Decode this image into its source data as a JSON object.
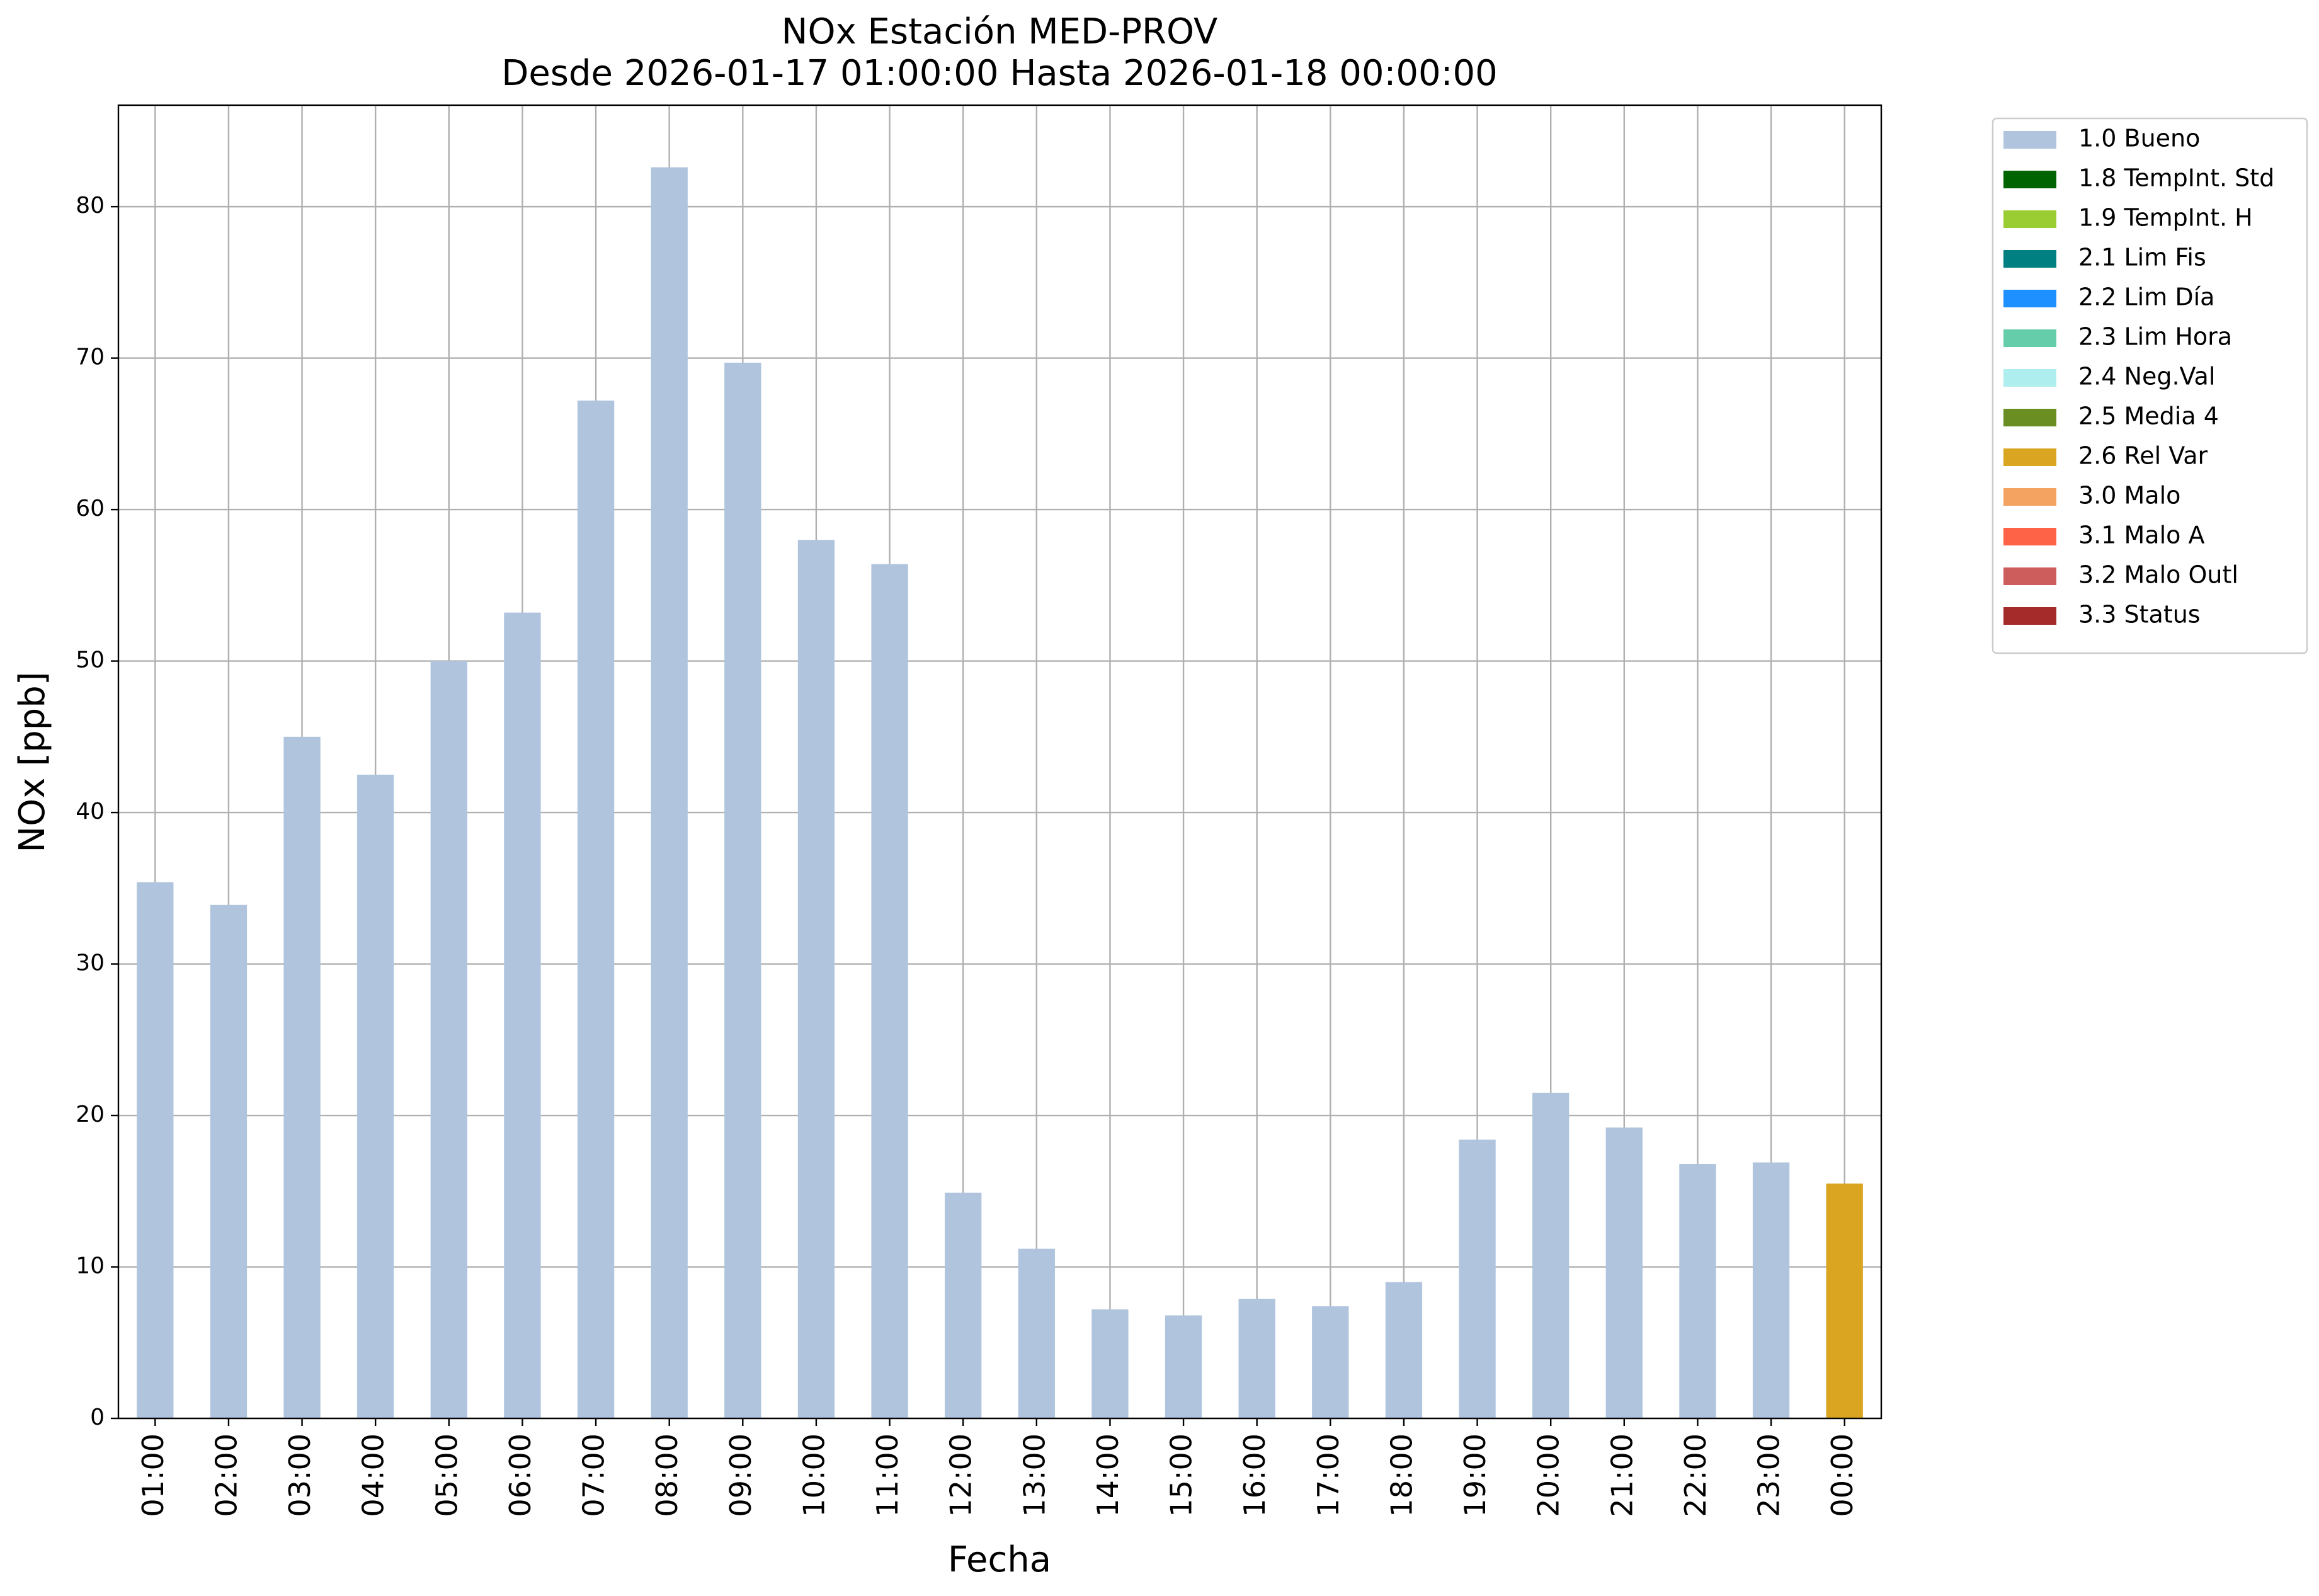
{
  "chart_data": {
    "type": "stacked_bar",
    "title": "NOx Estación MED-PROV",
    "subtitle": "Desde 2026-01-17 01:00:00 Hasta 2026-01-18 00:00:00",
    "x_label": "Fecha",
    "y_label": "NOx [ppb]",
    "categories": [
      "01:00",
      "02:00",
      "03:00",
      "04:00",
      "05:00",
      "06:00",
      "07:00",
      "08:00",
      "09:00",
      "10:00",
      "11:00",
      "12:00",
      "13:00",
      "14:00",
      "15:00",
      "16:00",
      "17:00",
      "18:00",
      "19:00",
      "20:00",
      "21:00",
      "22:00",
      "23:00",
      "00:00"
    ],
    "series": [
      {
        "name": "1.0 Bueno",
        "color": "#b0c4de",
        "values": [
          35.4,
          33.9,
          45.0,
          42.5,
          50.0,
          53.2,
          67.2,
          82.6,
          69.7,
          58.0,
          56.4,
          14.9,
          11.2,
          7.2,
          6.8,
          7.9,
          7.4,
          9.0,
          18.4,
          21.5,
          19.2,
          16.8,
          16.9,
          null
        ]
      },
      {
        "name": "1.8 TempInt. Std",
        "color": "#006400",
        "values": [
          null,
          null,
          null,
          null,
          null,
          null,
          null,
          null,
          null,
          null,
          null,
          null,
          null,
          null,
          null,
          null,
          null,
          null,
          null,
          null,
          null,
          null,
          null,
          null
        ]
      },
      {
        "name": "1.9 TempInt. H",
        "color": "#9acd32",
        "values": [
          null,
          null,
          null,
          null,
          null,
          null,
          null,
          null,
          null,
          null,
          null,
          null,
          null,
          null,
          null,
          null,
          null,
          null,
          null,
          null,
          null,
          null,
          null,
          null
        ]
      },
      {
        "name": "2.1 Lim Fis",
        "color": "#008080",
        "values": [
          null,
          null,
          null,
          null,
          null,
          null,
          null,
          null,
          null,
          null,
          null,
          null,
          null,
          null,
          null,
          null,
          null,
          null,
          null,
          null,
          null,
          null,
          null,
          null
        ]
      },
      {
        "name": "2.2 Lim Día",
        "color": "#1e90ff",
        "values": [
          null,
          null,
          null,
          null,
          null,
          null,
          null,
          null,
          null,
          null,
          null,
          null,
          null,
          null,
          null,
          null,
          null,
          null,
          null,
          null,
          null,
          null,
          null,
          null
        ]
      },
      {
        "name": "2.3 Lim Hora",
        "color": "#66cdaa",
        "values": [
          null,
          null,
          null,
          null,
          null,
          null,
          null,
          null,
          null,
          null,
          null,
          null,
          null,
          null,
          null,
          null,
          null,
          null,
          null,
          null,
          null,
          null,
          null,
          null
        ]
      },
      {
        "name": "2.4 Neg.Val",
        "color": "#afeeee",
        "values": [
          null,
          null,
          null,
          null,
          null,
          null,
          null,
          null,
          null,
          null,
          null,
          null,
          null,
          null,
          null,
          null,
          null,
          null,
          null,
          null,
          null,
          null,
          null,
          null
        ]
      },
      {
        "name": "2.5 Media 4",
        "color": "#6b8e23",
        "values": [
          null,
          null,
          null,
          null,
          null,
          null,
          null,
          null,
          null,
          null,
          null,
          null,
          null,
          null,
          null,
          null,
          null,
          null,
          null,
          null,
          null,
          null,
          null,
          null
        ]
      },
      {
        "name": "2.6 Rel Var",
        "color": "#daa520",
        "values": [
          null,
          null,
          null,
          null,
          null,
          null,
          null,
          null,
          null,
          null,
          null,
          null,
          null,
          null,
          null,
          null,
          null,
          null,
          null,
          null,
          null,
          null,
          null,
          15.5
        ]
      },
      {
        "name": "3.0 Malo",
        "color": "#f4a460",
        "values": [
          null,
          null,
          null,
          null,
          null,
          null,
          null,
          null,
          null,
          null,
          null,
          null,
          null,
          null,
          null,
          null,
          null,
          null,
          null,
          null,
          null,
          null,
          null,
          null
        ]
      },
      {
        "name": "3.1 Malo A",
        "color": "#ff6347",
        "values": [
          null,
          null,
          null,
          null,
          null,
          null,
          null,
          null,
          null,
          null,
          null,
          null,
          null,
          null,
          null,
          null,
          null,
          null,
          null,
          null,
          null,
          null,
          null,
          null
        ]
      },
      {
        "name": "3.2 Malo Outl",
        "color": "#cd5c5c",
        "values": [
          null,
          null,
          null,
          null,
          null,
          null,
          null,
          null,
          null,
          null,
          null,
          null,
          null,
          null,
          null,
          null,
          null,
          null,
          null,
          null,
          null,
          null,
          null,
          null
        ]
      },
      {
        "name": "3.3 Status",
        "color": "#a52a2a",
        "values": [
          null,
          null,
          null,
          null,
          null,
          null,
          null,
          null,
          null,
          null,
          null,
          null,
          null,
          null,
          null,
          null,
          null,
          null,
          null,
          null,
          null,
          null,
          null,
          null
        ]
      }
    ],
    "ylim": [
      0,
      86.7
    ],
    "yticks": [
      0,
      10,
      20,
      30,
      40,
      50,
      60,
      70,
      80
    ],
    "grid": true,
    "legend": "outside right"
  }
}
